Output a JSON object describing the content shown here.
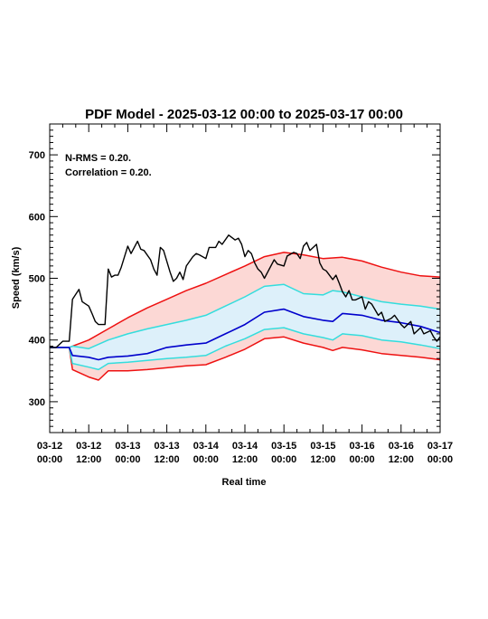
{
  "chart_data": {
    "type": "line",
    "title": "PDF Model - 2025-03-12 00:00 to 2025-03-17 00:00",
    "xlabel": "Real time",
    "ylabel": "Speed (km/s)",
    "x_range": [
      "2025-03-12 00:00",
      "2025-03-17 00:00"
    ],
    "ylim": [
      250,
      750
    ],
    "y_ticks": [
      300,
      400,
      500,
      600,
      700
    ],
    "x_tick_labels": [
      {
        "date": "03-12",
        "time": "00:00"
      },
      {
        "date": "03-12",
        "time": "12:00"
      },
      {
        "date": "03-13",
        "time": "00:00"
      },
      {
        "date": "03-13",
        "time": "12:00"
      },
      {
        "date": "03-14",
        "time": "00:00"
      },
      {
        "date": "03-14",
        "time": "12:00"
      },
      {
        "date": "03-15",
        "time": "00:00"
      },
      {
        "date": "03-15",
        "time": "12:00"
      },
      {
        "date": "03-16",
        "time": "00:00"
      },
      {
        "date": "03-16",
        "time": "12:00"
      },
      {
        "date": "03-17",
        "time": "00:00"
      }
    ],
    "annotations": [
      "N-RMS = 0.20.",
      "Correlation = 0.20."
    ],
    "grid": false,
    "colors": {
      "observed": "#000000",
      "median": "#0000cc",
      "inner": "#33dddd",
      "outer": "#ee1111",
      "inner_fill": "#ddf0fa",
      "outer_fill": "#fcd8d5"
    },
    "series": [
      {
        "role": "observed",
        "x": [
          "2025-03-12 00:00",
          "2025-03-12 02:00",
          "2025-03-12 04:00",
          "2025-03-12 06:00",
          "2025-03-12 07:00",
          "2025-03-12 09:00",
          "2025-03-12 10:00",
          "2025-03-12 12:00",
          "2025-03-12 13:00",
          "2025-03-12 14:00",
          "2025-03-12 15:00",
          "2025-03-12 17:00",
          "2025-03-12 18:00",
          "2025-03-12 19:00",
          "2025-03-12 20:00",
          "2025-03-12 21:00",
          "2025-03-12 22:00",
          "2025-03-12 23:00",
          "2025-03-13 00:00",
          "2025-03-13 01:00",
          "2025-03-13 03:00",
          "2025-03-13 04:00",
          "2025-03-13 05:00",
          "2025-03-13 07:00",
          "2025-03-13 08:00",
          "2025-03-13 09:00",
          "2025-03-13 10:00",
          "2025-03-13 11:00",
          "2025-03-13 13:00",
          "2025-03-13 14:00",
          "2025-03-13 15:00",
          "2025-03-13 16:00",
          "2025-03-13 17:00",
          "2025-03-13 18:00",
          "2025-03-13 20:00",
          "2025-03-13 21:00",
          "2025-03-13 22:00",
          "2025-03-14 00:00",
          "2025-03-14 01:00",
          "2025-03-14 03:00",
          "2025-03-14 04:00",
          "2025-03-14 05:00",
          "2025-03-14 07:00",
          "2025-03-14 09:00",
          "2025-03-14 10:00",
          "2025-03-14 11:00",
          "2025-03-14 12:00",
          "2025-03-14 13:00",
          "2025-03-14 14:00",
          "2025-03-14 15:00",
          "2025-03-14 16:00",
          "2025-03-14 17:00",
          "2025-03-14 18:00",
          "2025-03-14 19:00",
          "2025-03-14 21:00",
          "2025-03-14 22:00",
          "2025-03-15 00:00",
          "2025-03-15 01:00",
          "2025-03-15 03:00",
          "2025-03-15 04:00",
          "2025-03-15 05:00",
          "2025-03-15 06:00",
          "2025-03-15 07:00",
          "2025-03-15 08:00",
          "2025-03-15 10:00",
          "2025-03-15 11:00",
          "2025-03-15 12:00",
          "2025-03-15 13:00",
          "2025-03-15 15:00",
          "2025-03-15 16:00",
          "2025-03-15 17:00",
          "2025-03-15 18:00",
          "2025-03-15 19:00",
          "2025-03-15 20:00",
          "2025-03-15 21:00",
          "2025-03-15 22:00",
          "2025-03-16 00:00",
          "2025-03-16 01:00",
          "2025-03-16 02:00",
          "2025-03-16 03:00",
          "2025-03-16 05:00",
          "2025-03-16 06:00",
          "2025-03-16 07:00",
          "2025-03-16 09:00",
          "2025-03-16 10:00",
          "2025-03-16 12:00",
          "2025-03-16 13:00",
          "2025-03-16 15:00",
          "2025-03-16 16:00",
          "2025-03-16 18:00",
          "2025-03-16 19:00",
          "2025-03-16 21:00",
          "2025-03-16 22:00",
          "2025-03-16 23:00",
          "2025-03-17 00:00"
        ],
        "y": [
          388,
          388,
          398,
          398,
          466,
          482,
          462,
          455,
          443,
          430,
          425,
          425,
          515,
          502,
          505,
          505,
          518,
          535,
          552,
          540,
          560,
          547,
          545,
          530,
          515,
          505,
          550,
          545,
          510,
          495,
          500,
          510,
          498,
          520,
          535,
          540,
          538,
          532,
          550,
          550,
          560,
          555,
          570,
          562,
          565,
          555,
          535,
          545,
          540,
          525,
          515,
          510,
          500,
          510,
          530,
          523,
          520,
          536,
          542,
          540,
          532,
          552,
          558,
          545,
          555,
          525,
          515,
          512,
          498,
          505,
          492,
          478,
          470,
          480,
          465,
          465,
          470,
          450,
          462,
          458,
          440,
          445,
          430,
          435,
          440,
          425,
          420,
          430,
          410,
          420,
          410,
          415,
          405,
          398,
          405
        ]
      },
      {
        "role": "outer-upper",
        "x": [
          "2025-03-12 00:00",
          "2025-03-12 06:00",
          "2025-03-12 12:00",
          "2025-03-12 18:00",
          "2025-03-13 00:00",
          "2025-03-13 06:00",
          "2025-03-13 12:00",
          "2025-03-13 18:00",
          "2025-03-14 00:00",
          "2025-03-14 06:00",
          "2025-03-14 12:00",
          "2025-03-14 18:00",
          "2025-03-15 00:00",
          "2025-03-15 06:00",
          "2025-03-15 12:00",
          "2025-03-15 18:00",
          "2025-03-16 00:00",
          "2025-03-16 06:00",
          "2025-03-16 12:00",
          "2025-03-16 18:00",
          "2025-03-17 00:00"
        ],
        "y": [
          388,
          388,
          400,
          418,
          436,
          452,
          466,
          480,
          492,
          506,
          520,
          535,
          542,
          538,
          532,
          534,
          528,
          518,
          510,
          504,
          502
        ]
      },
      {
        "role": "inner-upper",
        "x": [
          "2025-03-12 00:00",
          "2025-03-12 06:00",
          "2025-03-12 07:00",
          "2025-03-12 12:00",
          "2025-03-12 18:00",
          "2025-03-13 00:00",
          "2025-03-13 06:00",
          "2025-03-13 12:00",
          "2025-03-13 18:00",
          "2025-03-14 00:00",
          "2025-03-14 06:00",
          "2025-03-14 12:00",
          "2025-03-14 18:00",
          "2025-03-15 00:00",
          "2025-03-15 06:00",
          "2025-03-15 12:00",
          "2025-03-15 15:00",
          "2025-03-15 18:00",
          "2025-03-16 00:00",
          "2025-03-16 06:00",
          "2025-03-16 12:00",
          "2025-03-16 18:00",
          "2025-03-17 00:00"
        ],
        "y": [
          388,
          388,
          390,
          386,
          400,
          410,
          418,
          425,
          432,
          440,
          455,
          470,
          487,
          490,
          475,
          473,
          480,
          478,
          470,
          462,
          458,
          455,
          450
        ]
      },
      {
        "role": "median",
        "x": [
          "2025-03-12 00:00",
          "2025-03-12 06:00",
          "2025-03-12 07:00",
          "2025-03-12 12:00",
          "2025-03-12 15:00",
          "2025-03-12 18:00",
          "2025-03-13 00:00",
          "2025-03-13 06:00",
          "2025-03-13 12:00",
          "2025-03-13 18:00",
          "2025-03-14 00:00",
          "2025-03-14 06:00",
          "2025-03-14 12:00",
          "2025-03-14 18:00",
          "2025-03-15 00:00",
          "2025-03-15 06:00",
          "2025-03-15 12:00",
          "2025-03-15 15:00",
          "2025-03-15 18:00",
          "2025-03-16 00:00",
          "2025-03-16 06:00",
          "2025-03-16 12:00",
          "2025-03-16 18:00",
          "2025-03-17 00:00"
        ],
        "y": [
          388,
          388,
          375,
          372,
          368,
          372,
          374,
          378,
          388,
          392,
          395,
          410,
          425,
          445,
          450,
          438,
          432,
          430,
          443,
          440,
          432,
          428,
          422,
          412
        ]
      },
      {
        "role": "inner-lower",
        "x": [
          "2025-03-12 00:00",
          "2025-03-12 06:00",
          "2025-03-12 07:00",
          "2025-03-12 12:00",
          "2025-03-12 15:00",
          "2025-03-12 18:00",
          "2025-03-13 00:00",
          "2025-03-13 06:00",
          "2025-03-13 12:00",
          "2025-03-13 18:00",
          "2025-03-14 00:00",
          "2025-03-14 06:00",
          "2025-03-14 12:00",
          "2025-03-14 18:00",
          "2025-03-15 00:00",
          "2025-03-15 06:00",
          "2025-03-15 12:00",
          "2025-03-15 15:00",
          "2025-03-15 18:00",
          "2025-03-16 00:00",
          "2025-03-16 06:00",
          "2025-03-16 12:00",
          "2025-03-16 18:00",
          "2025-03-17 00:00"
        ],
        "y": [
          388,
          388,
          362,
          356,
          352,
          362,
          364,
          367,
          370,
          372,
          375,
          390,
          402,
          417,
          420,
          410,
          404,
          400,
          410,
          407,
          400,
          397,
          392,
          386
        ]
      },
      {
        "role": "outer-lower",
        "x": [
          "2025-03-12 00:00",
          "2025-03-12 06:00",
          "2025-03-12 07:00",
          "2025-03-12 12:00",
          "2025-03-12 15:00",
          "2025-03-12 18:00",
          "2025-03-13 00:00",
          "2025-03-13 06:00",
          "2025-03-13 12:00",
          "2025-03-13 18:00",
          "2025-03-14 00:00",
          "2025-03-14 06:00",
          "2025-03-14 12:00",
          "2025-03-14 18:00",
          "2025-03-15 00:00",
          "2025-03-15 06:00",
          "2025-03-15 12:00",
          "2025-03-15 15:00",
          "2025-03-15 18:00",
          "2025-03-16 00:00",
          "2025-03-16 06:00",
          "2025-03-16 12:00",
          "2025-03-16 18:00",
          "2025-03-17 00:00"
        ],
        "y": [
          388,
          388,
          352,
          340,
          335,
          350,
          350,
          352,
          355,
          358,
          360,
          372,
          385,
          402,
          405,
          395,
          388,
          383,
          388,
          384,
          378,
          375,
          372,
          368
        ]
      }
    ]
  }
}
